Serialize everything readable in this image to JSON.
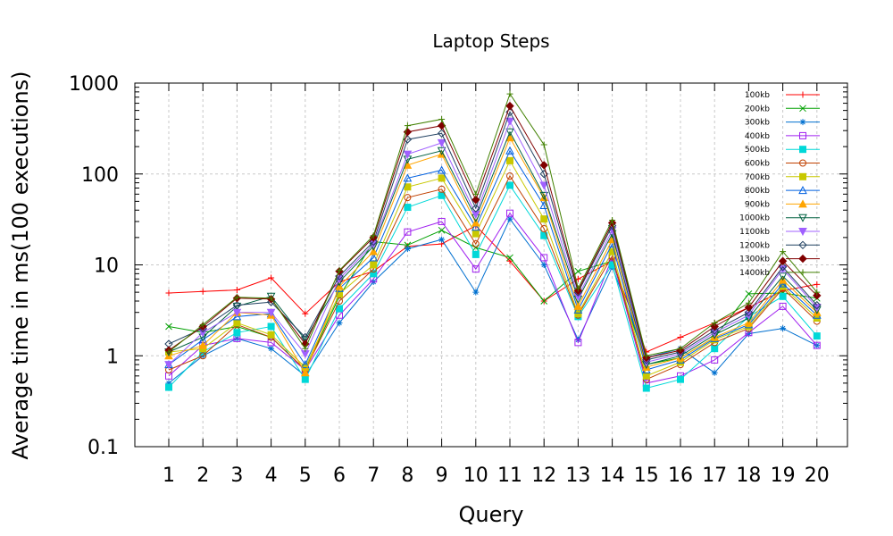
{
  "chart_data": {
    "type": "line",
    "title": "Laptop Steps",
    "xlabel": "Query",
    "ylabel": "Average time in ms(100 executions)",
    "y_scale": "log",
    "ylim": [
      0.1,
      1000
    ],
    "y_ticks": [
      "0.1",
      "1",
      "10",
      "100",
      "1000"
    ],
    "categories": [
      "1",
      "2",
      "3",
      "4",
      "5",
      "6",
      "7",
      "8",
      "9",
      "10",
      "11",
      "12",
      "13",
      "14",
      "15",
      "16",
      "17",
      "18",
      "19",
      "20"
    ],
    "grid": true,
    "legend_position": "top-right",
    "series": [
      {
        "name": "100kb",
        "color": "#ff0000",
        "marker": "plus",
        "values": [
          4.9,
          5.1,
          5.3,
          7.2,
          2.9,
          6.5,
          8.5,
          16,
          17,
          27,
          11,
          4,
          7,
          11,
          1.1,
          1.6,
          2.3,
          3.4,
          5.2,
          6.1
        ]
      },
      {
        "name": "200kb",
        "color": "#00a000",
        "marker": "x",
        "values": [
          2.1,
          1.8,
          2.1,
          1.6,
          0.7,
          4.5,
          18,
          16.5,
          24,
          15.5,
          12,
          4,
          8.5,
          11,
          0.8,
          0.95,
          1.6,
          4.8,
          4.9,
          4.3
        ]
      },
      {
        "name": "300kb",
        "color": "#0070d0",
        "marker": "star",
        "values": [
          0.5,
          1.0,
          1.55,
          1.2,
          0.6,
          2.3,
          6.5,
          15,
          19,
          5,
          32,
          10,
          1.5,
          9.5,
          0.95,
          1.2,
          0.65,
          1.75,
          2.0,
          1.3
        ]
      },
      {
        "name": "400kb",
        "color": "#a020f0",
        "marker": "square",
        "values": [
          0.6,
          1.3,
          1.55,
          1.4,
          0.7,
          2.8,
          7,
          23,
          30,
          9,
          37,
          12,
          1.4,
          12,
          0.5,
          0.6,
          0.9,
          1.8,
          3.5,
          1.3
        ]
      },
      {
        "name": "500kb",
        "color": "#00d8d8",
        "marker": "square-filled",
        "values": [
          0.45,
          1.1,
          1.8,
          2.1,
          0.55,
          3.3,
          8,
          43,
          58,
          13,
          75,
          21,
          2.7,
          10,
          0.44,
          0.55,
          1.2,
          2.7,
          4.5,
          1.65
        ]
      },
      {
        "name": "600kb",
        "color": "#c04000",
        "marker": "circle",
        "values": [
          0.7,
          1.0,
          2.2,
          1.6,
          0.7,
          4,
          9,
          55,
          68,
          17,
          95,
          25,
          2.8,
          12.5,
          0.55,
          0.8,
          1.4,
          2.0,
          5.5,
          2.4
        ]
      },
      {
        "name": "700kb",
        "color": "#c8c800",
        "marker": "square-filled",
        "values": [
          1.1,
          1.2,
          2.3,
          1.7,
          0.75,
          4.8,
          10,
          72,
          90,
          22,
          140,
          32,
          2.9,
          14,
          0.6,
          0.85,
          1.5,
          2.1,
          5.8,
          2.6
        ]
      },
      {
        "name": "800kb",
        "color": "#0060e0",
        "marker": "triangle",
        "values": [
          0.8,
          1.5,
          2.7,
          2.9,
          0.8,
          5.5,
          12,
          90,
          110,
          26,
          180,
          45,
          3.2,
          17,
          0.7,
          0.9,
          1.55,
          2.2,
          6.2,
          2.8
        ]
      },
      {
        "name": "900kb",
        "color": "#ffa500",
        "marker": "triangle-filled",
        "values": [
          1.0,
          1.3,
          3.0,
          2.8,
          0.65,
          5.8,
          14,
          125,
          165,
          29,
          250,
          55,
          3.5,
          19,
          0.75,
          0.95,
          1.6,
          2.3,
          6.8,
          3.0
        ]
      },
      {
        "name": "1000kb",
        "color": "#006040",
        "marker": "triangle-down",
        "values": [
          1.1,
          1.6,
          3.5,
          4.5,
          1.5,
          6.5,
          16,
          145,
          180,
          33,
          290,
          58,
          4.2,
          22,
          0.8,
          1.0,
          1.7,
          2.6,
          7.5,
          3.2
        ]
      },
      {
        "name": "1100kb",
        "color": "#a060ff",
        "marker": "triangle-down-filled",
        "values": [
          0.8,
          1.8,
          3.0,
          3.0,
          1.05,
          7,
          17,
          165,
          220,
          36,
          380,
          75,
          4.5,
          24,
          0.85,
          1.05,
          1.8,
          2.8,
          9,
          3.4
        ]
      },
      {
        "name": "1200kb",
        "color": "#204060",
        "marker": "diamond",
        "values": [
          1.35,
          2.0,
          3.6,
          3.9,
          1.6,
          7.5,
          18,
          240,
          280,
          42,
          480,
          100,
          5,
          27,
          0.9,
          1.1,
          1.9,
          3.0,
          9.5,
          3.6
        ]
      },
      {
        "name": "1300kb",
        "color": "#800000",
        "marker": "diamond-filled",
        "values": [
          1.15,
          2.1,
          4.3,
          4.2,
          1.35,
          8.5,
          20,
          290,
          340,
          52,
          560,
          125,
          5.2,
          29,
          0.95,
          1.15,
          2.1,
          3.4,
          11,
          4.6
        ]
      },
      {
        "name": "1400kb",
        "color": "#408000",
        "marker": "plus",
        "values": [
          1.1,
          2.2,
          4.4,
          4.3,
          1.2,
          8.7,
          21,
          340,
          400,
          60,
          760,
          210,
          5.5,
          31,
          1.0,
          1.2,
          2.3,
          3.8,
          14,
          5.0
        ]
      }
    ]
  }
}
